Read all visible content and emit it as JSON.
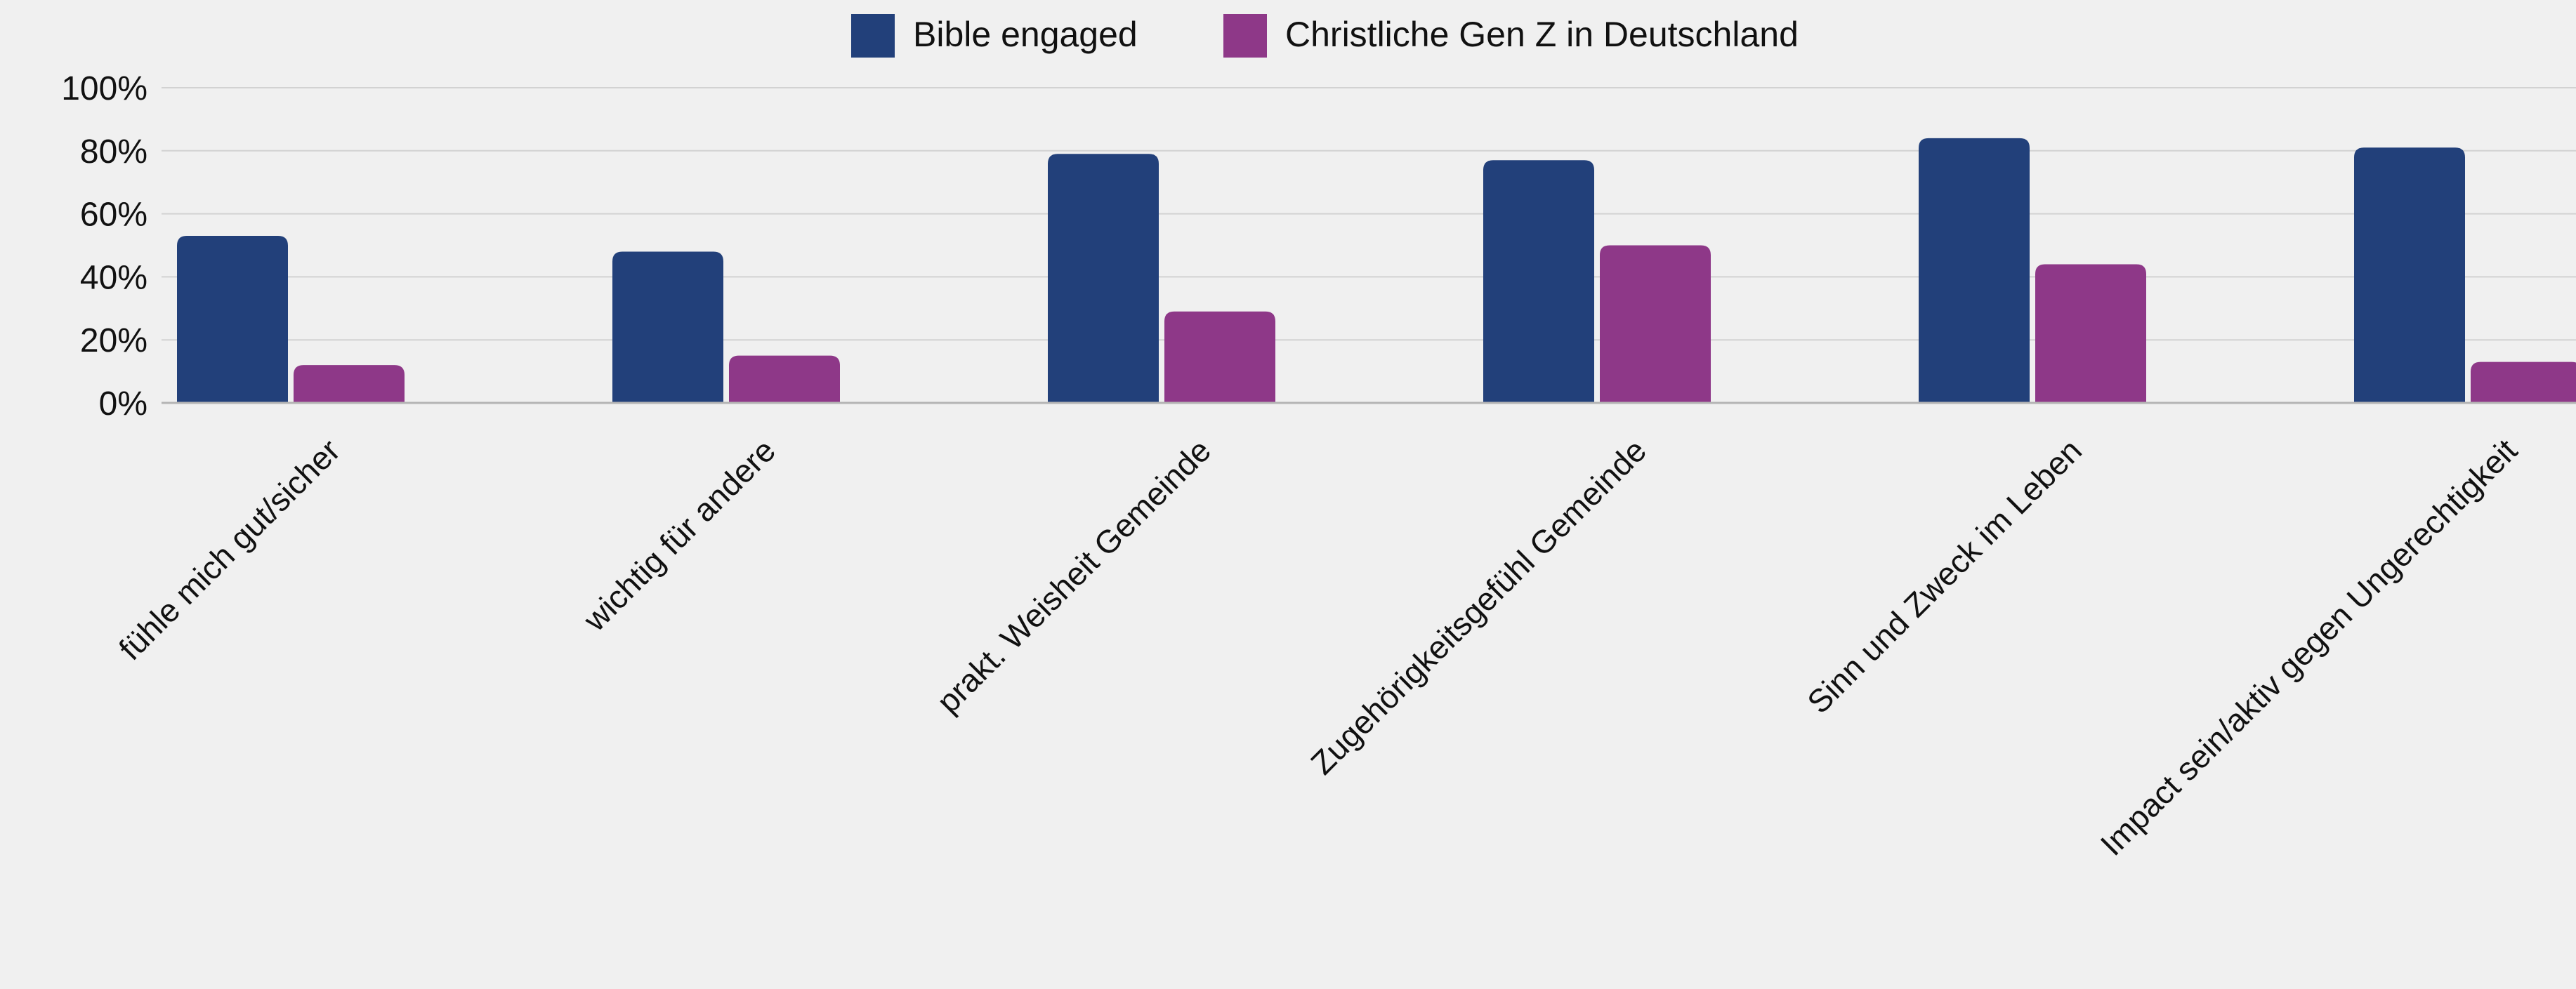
{
  "chart_data": {
    "type": "bar",
    "title": "",
    "xlabel": "",
    "ylabel": "",
    "categories": [
      "fühle mich gut/sicher",
      "wichtig für andere",
      "prakt. Weisheit Gemeinde",
      "Zugehörigkeitsgefühl Gemeinde",
      "Sinn und Zweck im Leben",
      "Impact sein/aktiv gegen Ungerechtigkeit"
    ],
    "series": [
      {
        "name": "Bible engaged",
        "color": "#22407a",
        "values": [
          53,
          48,
          79,
          77,
          84,
          81
        ]
      },
      {
        "name": "Christliche Gen Z in Deutschland",
        "color": "#8e3888",
        "values": [
          12,
          15,
          29,
          50,
          44,
          13
        ]
      }
    ],
    "ylim": [
      0,
      100
    ],
    "yticks": [
      0,
      20,
      40,
      60,
      80,
      100
    ],
    "ytick_labels": [
      "0%",
      "20%",
      "40%",
      "60%",
      "80%",
      "100%"
    ],
    "grid": true,
    "legend": "top-center",
    "colors": {
      "background": "#f0f0f0",
      "grid": "#d2d2d2",
      "axis": "#b4b4b4"
    }
  }
}
